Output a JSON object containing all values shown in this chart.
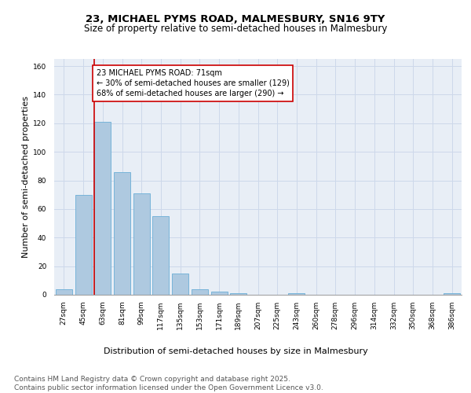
{
  "title1": "23, MICHAEL PYMS ROAD, MALMESBURY, SN16 9TY",
  "title2": "Size of property relative to semi-detached houses in Malmesbury",
  "xlabel": "Distribution of semi-detached houses by size in Malmesbury",
  "ylabel": "Number of semi-detached properties",
  "bins": [
    "27sqm",
    "45sqm",
    "63sqm",
    "81sqm",
    "99sqm",
    "117sqm",
    "135sqm",
    "153sqm",
    "171sqm",
    "189sqm",
    "207sqm",
    "225sqm",
    "243sqm",
    "260sqm",
    "278sqm",
    "296sqm",
    "314sqm",
    "332sqm",
    "350sqm",
    "368sqm",
    "386sqm"
  ],
  "values": [
    4,
    70,
    121,
    86,
    71,
    55,
    15,
    4,
    2,
    1,
    0,
    0,
    1,
    0,
    0,
    0,
    0,
    0,
    0,
    0,
    1
  ],
  "bar_color": "#aec9e0",
  "bar_edge_color": "#6baed6",
  "grid_color": "#cdd8ea",
  "bg_color": "#e8eef6",
  "annotation_text": "23 MICHAEL PYMS ROAD: 71sqm\n← 30% of semi-detached houses are smaller (129)\n68% of semi-detached houses are larger (290) →",
  "annotation_box_color": "#ffffff",
  "annotation_box_edge": "#cc0000",
  "vline_color": "#cc0000",
  "ylim": [
    0,
    165
  ],
  "yticks": [
    0,
    20,
    40,
    60,
    80,
    100,
    120,
    140,
    160
  ],
  "footer": "Contains HM Land Registry data © Crown copyright and database right 2025.\nContains public sector information licensed under the Open Government Licence v3.0.",
  "title_fontsize": 9.5,
  "subtitle_fontsize": 8.5,
  "axis_label_fontsize": 8,
  "tick_fontsize": 6.5,
  "annotation_fontsize": 7,
  "footer_fontsize": 6.5
}
